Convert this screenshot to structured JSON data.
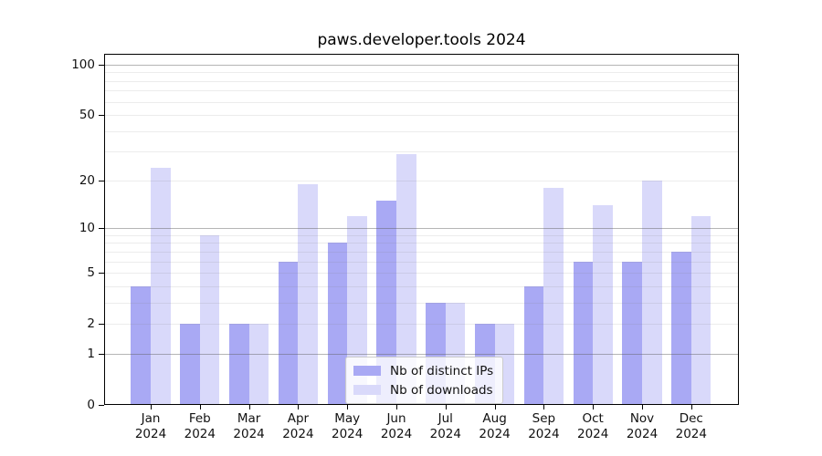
{
  "title": "paws.developer.tools 2024",
  "chart_data": {
    "type": "bar",
    "title": "paws.developer.tools 2024",
    "categories": [
      "Jan 2024",
      "Feb 2024",
      "Mar 2024",
      "Apr 2024",
      "May 2024",
      "Jun 2024",
      "Jul 2024",
      "Aug 2024",
      "Sep 2024",
      "Oct 2024",
      "Nov 2024",
      "Dec 2024"
    ],
    "series": [
      {
        "name": "Nb of distinct IPs",
        "color": "#a9a9f4",
        "values": [
          4,
          2,
          2,
          6,
          8,
          15,
          3,
          2,
          4,
          6,
          6,
          7
        ]
      },
      {
        "name": "Nb of downloads",
        "color": "#d9d9fa",
        "values": [
          24,
          9,
          2,
          19,
          12,
          29,
          3,
          2,
          18,
          14,
          20,
          12
        ]
      }
    ],
    "yscale": "log10(value+1)",
    "ylim": [
      0,
      116
    ],
    "yticks": [
      0,
      1,
      2,
      5,
      10,
      20,
      50,
      100
    ],
    "grid": {
      "major_lines": [
        1,
        10,
        100
      ],
      "minor_lines": [
        2,
        3,
        4,
        5,
        6,
        7,
        8,
        9,
        20,
        30,
        40,
        50,
        60,
        70,
        80,
        90
      ],
      "major_color": "rgba(90,90,90,0.45)",
      "minor_color": "rgba(120,120,120,0.14)"
    },
    "legend_position": "lower center",
    "axis_color": "#000000",
    "background_color": "#ffffff"
  }
}
